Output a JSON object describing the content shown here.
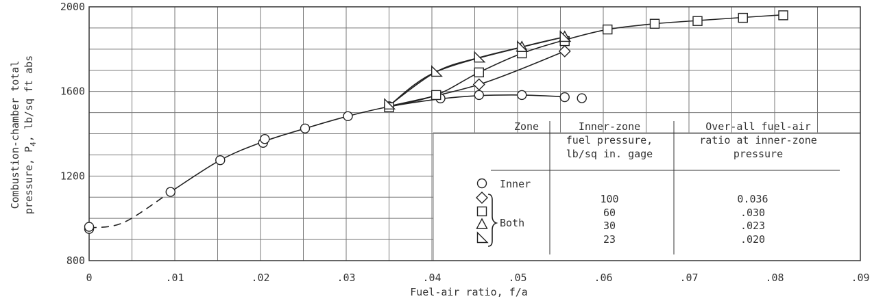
{
  "chart_data": {
    "type": "line",
    "xlabel": "Fuel-air ratio, f/a",
    "ylabel_line1": "Combustion-chamber total",
    "ylabel_line2_pre": "pressure, P",
    "ylabel_line2_sub": "4",
    "ylabel_line2_post": ", lb/sq ft abs",
    "xlim": [
      0,
      0.09
    ],
    "ylim": [
      800,
      2000
    ],
    "x_ticks": [
      {
        "value": 0,
        "label": "0"
      },
      {
        "value": 0.01,
        "label": ".01"
      },
      {
        "value": 0.02,
        "label": ".02"
      },
      {
        "value": 0.03,
        "label": ".03"
      },
      {
        "value": 0.04,
        "label": ".04"
      },
      {
        "value": 0.05,
        "label": ".05"
      },
      {
        "value": 0.06,
        "label": ".06"
      },
      {
        "value": 0.07,
        "label": ".07"
      },
      {
        "value": 0.08,
        "label": ".08"
      },
      {
        "value": 0.09,
        "label": ".09"
      }
    ],
    "y_ticks": [
      {
        "value": 800,
        "label": "800"
      },
      {
        "value": 1200,
        "label": "1200"
      },
      {
        "value": 1600,
        "label": "1600"
      },
      {
        "value": 2000,
        "label": "2000"
      }
    ],
    "grid": true,
    "series": [
      {
        "marker": "circle",
        "points": [
          [
            0,
            950
          ],
          [
            0,
            960
          ],
          [
            0.0095,
            1125
          ],
          [
            0.0153,
            1275
          ],
          [
            0.0203,
            1357
          ],
          [
            0.0205,
            1375
          ],
          [
            0.0252,
            1425
          ],
          [
            0.0302,
            1483
          ],
          [
            0.035,
            1530
          ],
          [
            0.041,
            1567
          ],
          [
            0.0455,
            1583
          ],
          [
            0.0505,
            1583
          ],
          [
            0.0555,
            1573
          ],
          [
            0.0575,
            1568
          ]
        ],
        "curve_dashed": [
          [
            0,
            955
          ],
          [
            0.004,
            980
          ],
          [
            0.0095,
            1125
          ]
        ],
        "curve_solid": [
          [
            0.0095,
            1125
          ],
          [
            0.0153,
            1275
          ],
          [
            0.0203,
            1362
          ],
          [
            0.0252,
            1425
          ],
          [
            0.0302,
            1483
          ],
          [
            0.035,
            1528
          ],
          [
            0.041,
            1565
          ],
          [
            0.0455,
            1580
          ],
          [
            0.0505,
            1583
          ],
          [
            0.0555,
            1575
          ]
        ]
      },
      {
        "marker": "diamond",
        "points": [
          [
            0.0455,
            1633
          ],
          [
            0.0555,
            1790
          ]
        ],
        "curve": [
          [
            0.035,
            1530
          ],
          [
            0.0455,
            1633
          ],
          [
            0.0555,
            1790
          ]
        ]
      },
      {
        "marker": "square",
        "points": [
          [
            0.035,
            1525
          ],
          [
            0.0405,
            1583
          ],
          [
            0.0455,
            1690
          ],
          [
            0.0505,
            1780
          ],
          [
            0.0555,
            1838
          ],
          [
            0.0605,
            1893
          ],
          [
            0.066,
            1920
          ],
          [
            0.071,
            1933
          ],
          [
            0.0763,
            1948
          ],
          [
            0.081,
            1960
          ]
        ],
        "curve": [
          [
            0.035,
            1527
          ],
          [
            0.0405,
            1583
          ],
          [
            0.0455,
            1690
          ],
          [
            0.0505,
            1780
          ],
          [
            0.0555,
            1843
          ],
          [
            0.0605,
            1893
          ],
          [
            0.066,
            1920
          ],
          [
            0.071,
            1935
          ],
          [
            0.0763,
            1950
          ],
          [
            0.081,
            1962
          ]
        ]
      },
      {
        "marker": "triangle",
        "points": [
          [
            0.0505,
            1810
          ],
          [
            0.0555,
            1858
          ]
        ],
        "curve": [
          [
            0.035,
            1533
          ],
          [
            0.0405,
            1693
          ],
          [
            0.0505,
            1810
          ],
          [
            0.0555,
            1858
          ]
        ]
      },
      {
        "marker": "right-triangle",
        "points": [
          [
            0.035,
            1538
          ],
          [
            0.0405,
            1693
          ],
          [
            0.0455,
            1760
          ],
          [
            0.0505,
            1810
          ],
          [
            0.0555,
            1858
          ]
        ],
        "curve": [
          [
            0.035,
            1533
          ],
          [
            0.0405,
            1693
          ],
          [
            0.0455,
            1760
          ],
          [
            0.0505,
            1810
          ],
          [
            0.0555,
            1858
          ]
        ]
      }
    ],
    "legend": {
      "headers": {
        "zone": "Zone",
        "pressure": [
          "Inner-zone",
          "fuel pressure,",
          "lb/sq in. gage"
        ],
        "ratio": [
          "Over-all fuel-air",
          "ratio at inner-zone",
          "pressure"
        ]
      },
      "rows": [
        {
          "marker": "circle",
          "zone": "Inner",
          "pressure": "",
          "ratio": ""
        },
        {
          "marker": "diamond",
          "zone": "",
          "pressure": "100",
          "ratio": "0.036"
        },
        {
          "marker": "square",
          "zone": "",
          "pressure": "60",
          "ratio": ".030"
        },
        {
          "marker": "triangle",
          "zone": "",
          "pressure": "30",
          "ratio": ".023"
        },
        {
          "marker": "right-triangle",
          "zone": "",
          "pressure": "23",
          "ratio": ".020"
        }
      ],
      "brace_label": "Both"
    }
  }
}
